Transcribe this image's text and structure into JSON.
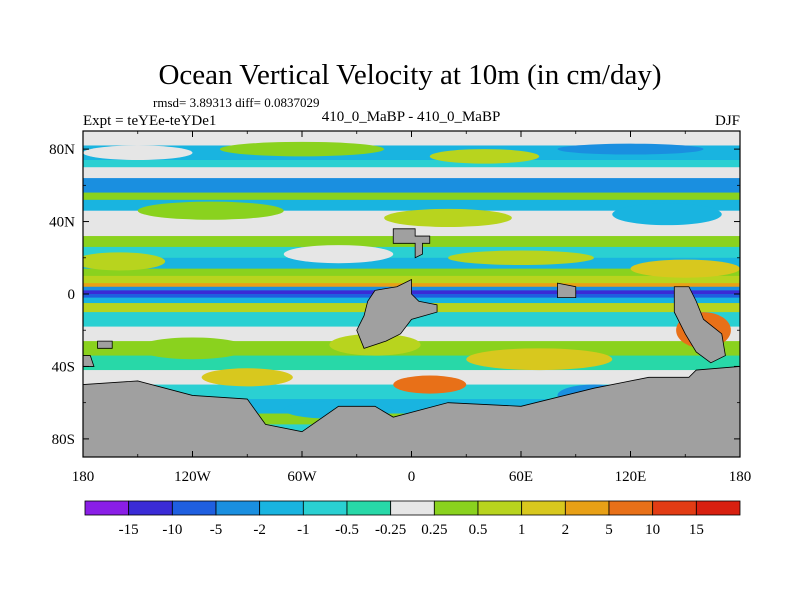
{
  "chart_data": {
    "type": "heatmap",
    "title": "Ocean Vertical Velocity at 10m (in cm/day)",
    "stats_text": "rmsd= 3.89313 diff= 0.0837029",
    "left_label": "Expt = teYEe-teYDe1",
    "center_label": "410_0_MaBP - 410_0_MaBP",
    "right_label": "DJF",
    "x_ticks": [
      "180",
      "120W",
      "60W",
      "0",
      "60E",
      "120E",
      "180"
    ],
    "x_tick_values": [
      -180,
      -120,
      -60,
      0,
      60,
      120,
      180
    ],
    "y_ticks": [
      "80N",
      "40N",
      "0",
      "40S",
      "80S"
    ],
    "y_tick_values": [
      80,
      40,
      0,
      -40,
      -80
    ],
    "xlim": [
      -180,
      180
    ],
    "ylim": [
      -90,
      90
    ],
    "colorbar": {
      "labels": [
        "-15",
        "-10",
        "-5",
        "-2",
        "-1",
        "-0.5",
        "-0.25",
        "0.25",
        "0.5",
        "1",
        "2",
        "5",
        "10",
        "15"
      ],
      "colors": [
        "#8a1ee6",
        "#3a2bd6",
        "#1f5fe0",
        "#1a8fe0",
        "#19b4e0",
        "#2ad0d2",
        "#28d8a8",
        "#e6e6e6",
        "#8ad21e",
        "#b8d41e",
        "#d8c81e",
        "#e8a016",
        "#e87018",
        "#e23c14",
        "#d82010"
      ]
    },
    "land_color": "#a0a0a0"
  }
}
